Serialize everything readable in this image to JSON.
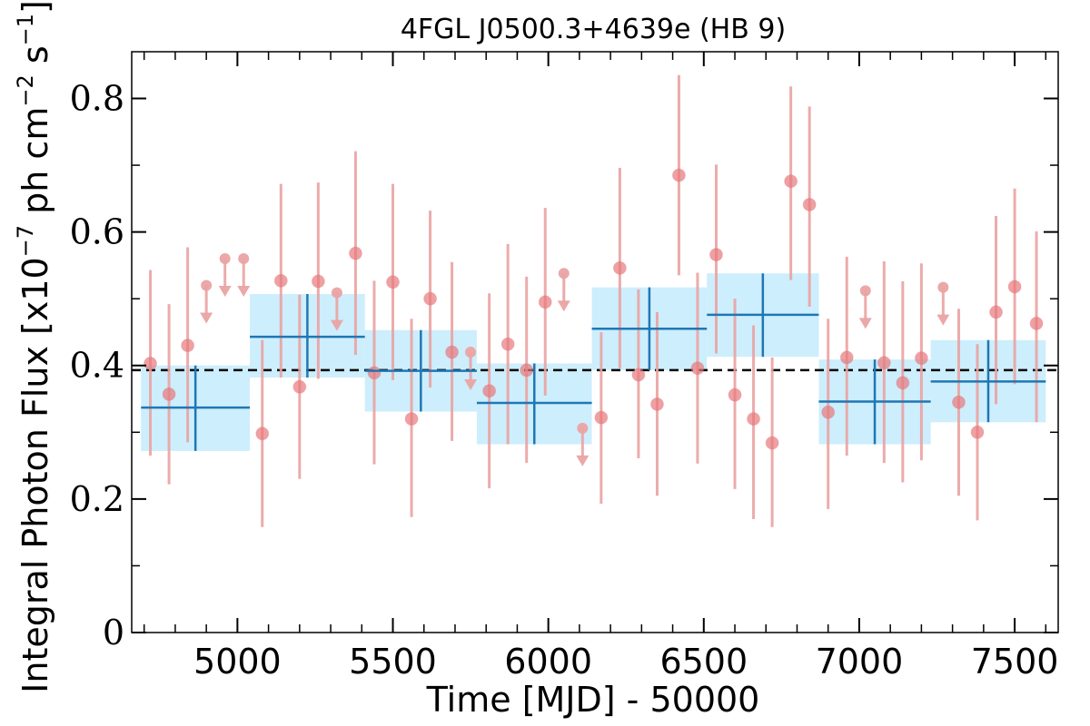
{
  "chart_data": {
    "type": "scatter",
    "title": "4FGL J0500.3+4639e (HB 9)",
    "xlabel": "Time [MJD] - 50000",
    "ylabel": "Integral Photon Flux [x10",
    "ylabel_exp": "−7",
    "ylabel_mid": " ph cm",
    "ylabel_exp2": "−2",
    "ylabel_mid2": " s",
    "ylabel_exp3": "−1",
    "ylabel_end": "]",
    "xlim": [
      4660,
      7640
    ],
    "ylim": [
      0,
      0.87
    ],
    "x_ticks": [
      5000,
      5500,
      6000,
      6500,
      7000,
      7500
    ],
    "x_tick_labels": [
      "5000",
      "5500",
      "6000",
      "6500",
      "7000",
      "7500"
    ],
    "y_ticks": [
      0,
      0.2,
      0.4,
      0.6,
      0.8
    ],
    "y_tick_labels": [
      "0",
      "0.2",
      "0.4",
      "0.6",
      "0.8"
    ],
    "mean_flux": 0.393,
    "colors": {
      "points": "#e8797d",
      "error_bars": "#eaa3a3",
      "yearly_box": "#cdeefc",
      "yearly_line": "#1f77b4",
      "mean_line": "#000000"
    },
    "monthly_detections": [
      {
        "x": 4720,
        "y": 0.403,
        "lo": 0.265,
        "hi": 0.543
      },
      {
        "x": 4780,
        "y": 0.357,
        "lo": 0.222,
        "hi": 0.492
      },
      {
        "x": 4840,
        "y": 0.43,
        "lo": 0.285,
        "hi": 0.577
      },
      {
        "x": 5080,
        "y": 0.298,
        "lo": 0.158,
        "hi": 0.438
      },
      {
        "x": 5140,
        "y": 0.527,
        "lo": 0.382,
        "hi": 0.672
      },
      {
        "x": 5200,
        "y": 0.368,
        "lo": 0.23,
        "hi": 0.506
      },
      {
        "x": 5260,
        "y": 0.526,
        "lo": 0.38,
        "hi": 0.674
      },
      {
        "x": 5380,
        "y": 0.568,
        "lo": 0.416,
        "hi": 0.721
      },
      {
        "x": 5440,
        "y": 0.389,
        "lo": 0.252,
        "hi": 0.527
      },
      {
        "x": 5500,
        "y": 0.525,
        "lo": 0.378,
        "hi": 0.672
      },
      {
        "x": 5560,
        "y": 0.32,
        "lo": 0.173,
        "hi": 0.47
      },
      {
        "x": 5620,
        "y": 0.5,
        "lo": 0.367,
        "hi": 0.632
      },
      {
        "x": 5690,
        "y": 0.42,
        "lo": 0.287,
        "hi": 0.555
      },
      {
        "x": 5810,
        "y": 0.362,
        "lo": 0.216,
        "hi": 0.508
      },
      {
        "x": 5870,
        "y": 0.432,
        "lo": 0.282,
        "hi": 0.582
      },
      {
        "x": 5930,
        "y": 0.393,
        "lo": 0.254,
        "hi": 0.533
      },
      {
        "x": 5990,
        "y": 0.495,
        "lo": 0.355,
        "hi": 0.636
      },
      {
        "x": 6170,
        "y": 0.322,
        "lo": 0.193,
        "hi": 0.45
      },
      {
        "x": 6230,
        "y": 0.546,
        "lo": 0.396,
        "hi": 0.696
      },
      {
        "x": 6290,
        "y": 0.386,
        "lo": 0.261,
        "hi": 0.514
      },
      {
        "x": 6350,
        "y": 0.342,
        "lo": 0.205,
        "hi": 0.48
      },
      {
        "x": 6420,
        "y": 0.685,
        "lo": 0.535,
        "hi": 0.835
      },
      {
        "x": 6480,
        "y": 0.396,
        "lo": 0.253,
        "hi": 0.539
      },
      {
        "x": 6540,
        "y": 0.566,
        "lo": 0.418,
        "hi": 0.701
      },
      {
        "x": 6600,
        "y": 0.356,
        "lo": 0.215,
        "hi": 0.5
      },
      {
        "x": 6660,
        "y": 0.32,
        "lo": 0.17,
        "hi": 0.46
      },
      {
        "x": 6720,
        "y": 0.284,
        "lo": 0.158,
        "hi": 0.412
      },
      {
        "x": 6780,
        "y": 0.676,
        "lo": 0.528,
        "hi": 0.818
      },
      {
        "x": 6840,
        "y": 0.641,
        "lo": 0.488,
        "hi": 0.788
      },
      {
        "x": 6900,
        "y": 0.33,
        "lo": 0.185,
        "hi": 0.47
      },
      {
        "x": 6960,
        "y": 0.412,
        "lo": 0.265,
        "hi": 0.563
      },
      {
        "x": 7080,
        "y": 0.404,
        "lo": 0.254,
        "hi": 0.556
      },
      {
        "x": 7140,
        "y": 0.374,
        "lo": 0.225,
        "hi": 0.526
      },
      {
        "x": 7200,
        "y": 0.411,
        "lo": 0.258,
        "hi": 0.553
      },
      {
        "x": 7320,
        "y": 0.345,
        "lo": 0.205,
        "hi": 0.485
      },
      {
        "x": 7380,
        "y": 0.3,
        "lo": 0.168,
        "hi": 0.432
      },
      {
        "x": 7440,
        "y": 0.48,
        "lo": 0.342,
        "hi": 0.624
      },
      {
        "x": 7500,
        "y": 0.518,
        "lo": 0.372,
        "hi": 0.665
      },
      {
        "x": 7570,
        "y": 0.463,
        "lo": 0.315,
        "hi": 0.601
      }
    ],
    "monthly_upper_limits": [
      {
        "x": 4900,
        "y": 0.52
      },
      {
        "x": 4960,
        "y": 0.56
      },
      {
        "x": 5020,
        "y": 0.56
      },
      {
        "x": 5320,
        "y": 0.509
      },
      {
        "x": 5750,
        "y": 0.42
      },
      {
        "x": 6050,
        "y": 0.538
      },
      {
        "x": 6110,
        "y": 0.306
      },
      {
        "x": 7020,
        "y": 0.512
      },
      {
        "x": 7270,
        "y": 0.517
      }
    ],
    "yearly_bins": [
      {
        "x0": 4690,
        "x1": 5040,
        "y": 0.337,
        "lo": 0.272,
        "hi": 0.4
      },
      {
        "x0": 5040,
        "x1": 5410,
        "y": 0.443,
        "lo": 0.382,
        "hi": 0.507
      },
      {
        "x0": 5410,
        "x1": 5770,
        "y": 0.392,
        "lo": 0.331,
        "hi": 0.453
      },
      {
        "x0": 5770,
        "x1": 6140,
        "y": 0.344,
        "lo": 0.282,
        "hi": 0.403
      },
      {
        "x0": 6140,
        "x1": 6510,
        "y": 0.455,
        "lo": 0.393,
        "hi": 0.517
      },
      {
        "x0": 6510,
        "x1": 6870,
        "y": 0.476,
        "lo": 0.413,
        "hi": 0.538
      },
      {
        "x0": 6870,
        "x1": 7230,
        "y": 0.346,
        "lo": 0.282,
        "hi": 0.409
      },
      {
        "x0": 7230,
        "x1": 7600,
        "y": 0.376,
        "lo": 0.315,
        "hi": 0.438
      }
    ]
  }
}
